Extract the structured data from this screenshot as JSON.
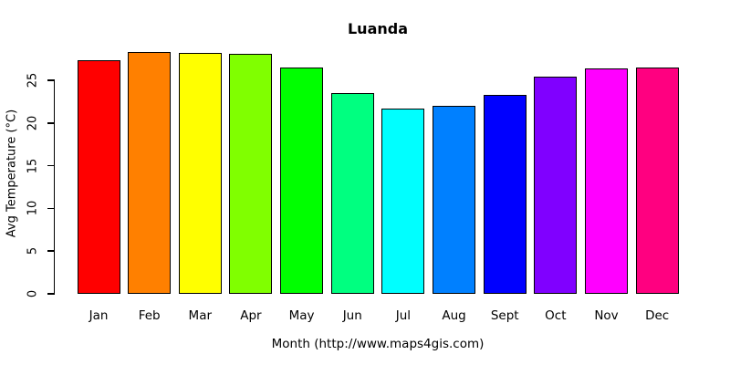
{
  "chart_data": {
    "type": "bar",
    "title": "Luanda",
    "xlabel": "Month (http://www.maps4gis.com)",
    "ylabel": "Avg Temperature (°C)",
    "categories": [
      "Jan",
      "Feb",
      "Mar",
      "Apr",
      "May",
      "Jun",
      "Jul",
      "Aug",
      "Sept",
      "Oct",
      "Nov",
      "Dec"
    ],
    "values": [
      27.3,
      28.3,
      28.2,
      28.1,
      26.5,
      23.5,
      21.7,
      22.0,
      23.3,
      25.4,
      26.4,
      26.5
    ],
    "bar_colors": [
      "#FF0000",
      "#FF8000",
      "#FFFF00",
      "#80FF00",
      "#00FF00",
      "#00FF80",
      "#00FFFF",
      "#0080FF",
      "#0000FF",
      "#8000FF",
      "#FF00FF",
      "#FF0080"
    ],
    "yticks": [
      0,
      5,
      10,
      15,
      20,
      25
    ],
    "ylim": [
      0,
      25
    ],
    "axis_color": "#000000",
    "background": "#FFFFFF",
    "grid": false,
    "legend": null
  }
}
